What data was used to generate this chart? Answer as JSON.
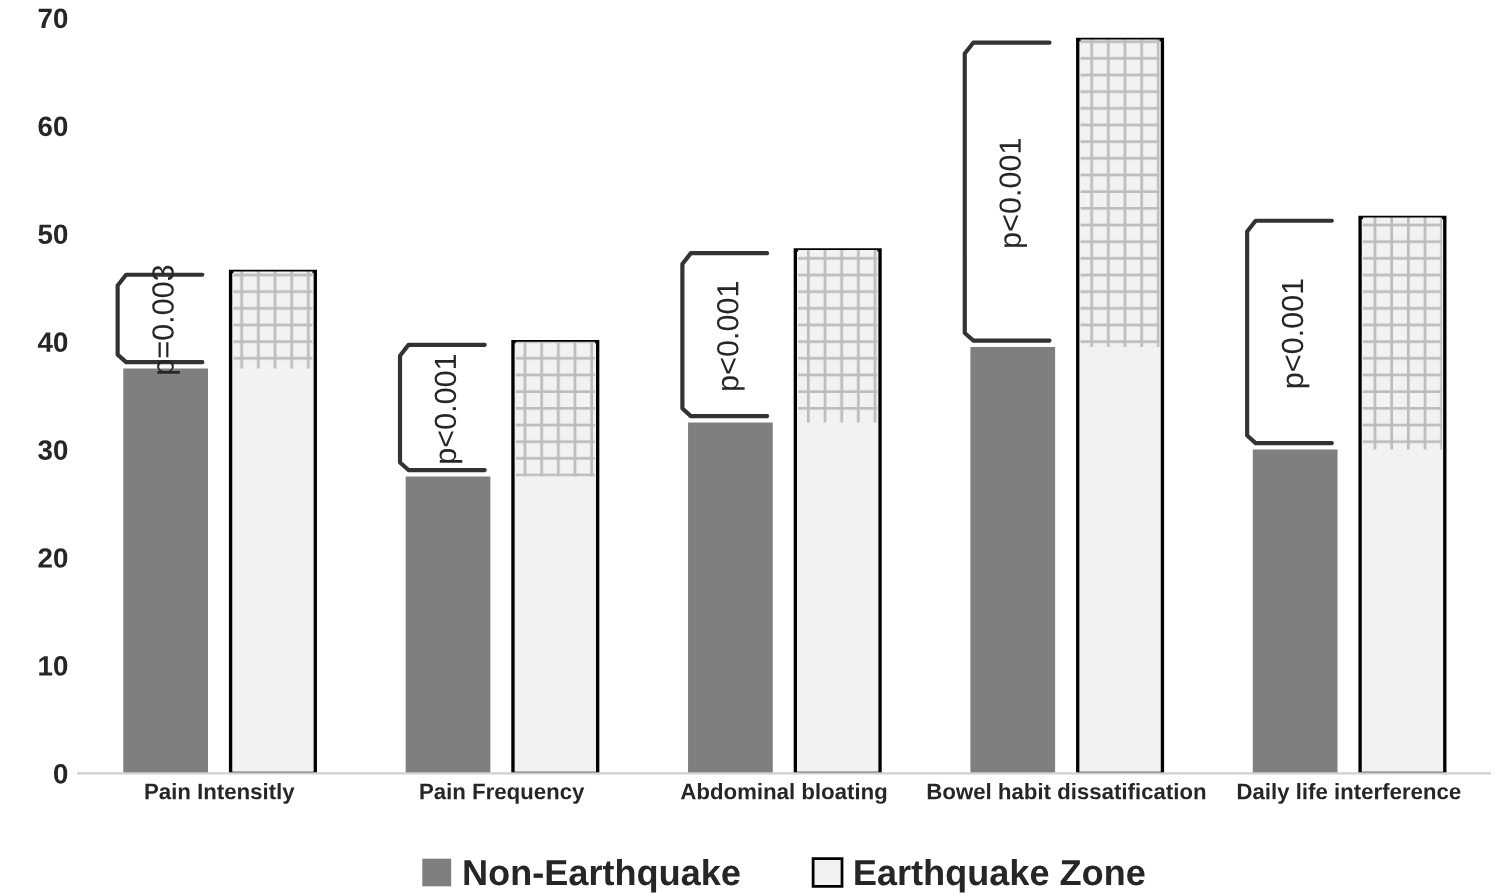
{
  "chart_data": {
    "type": "bar",
    "categories": [
      "Pain Intensitly",
      "Pain Frequency",
      "Abdominal bloating",
      "Bowel habit dissatification",
      "Daily life interference"
    ],
    "series": [
      {
        "name": "Non-Earthquake",
        "color": "#7f7f7f",
        "values": [
          37.5,
          27.5,
          32.5,
          39.5,
          30
        ]
      },
      {
        "name": "Earthquake Zone",
        "color": "#f2f2f2",
        "values": [
          46.5,
          40,
          48.5,
          68,
          51.5
        ]
      }
    ],
    "ylim": [
      0,
      70
    ],
    "yticks": [
      0,
      10,
      20,
      30,
      40,
      50,
      60,
      70
    ],
    "grid": false,
    "legend": "bottom",
    "annotations": [
      "p=0.003",
      "p<0.001",
      "p<0.001",
      "p<0.001",
      "p<0.001"
    ]
  }
}
